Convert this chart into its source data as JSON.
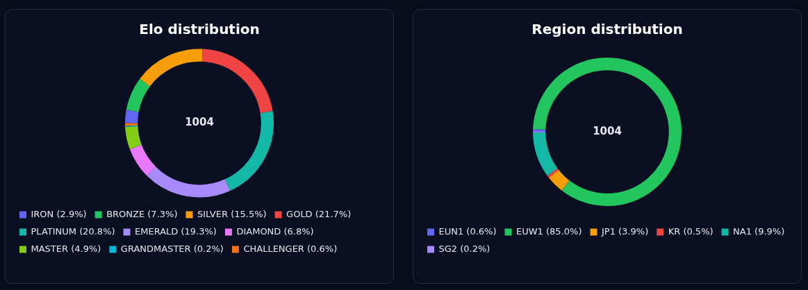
{
  "chart_data": [
    {
      "type": "donut",
      "title": "Elo distribution",
      "categories": [
        "IRON (2.9%)",
        "BRONZE (7.3%)",
        "SILVER (15.5%)",
        "GOLD (21.7%)",
        "PLATINUM (20.8%)",
        "EMERALD (19.3%)",
        "DIAMOND (6.8%)",
        "MASTER (4.9%)",
        "GRANDMASTER (0.2%)",
        "CHALLENGER (0.6%)"
      ],
      "values": [
        2.9,
        7.3,
        15.5,
        21.7,
        20.8,
        19.3,
        6.8,
        4.9,
        0.2,
        0.6
      ],
      "colors": [
        "#6366f1",
        "#22c55e",
        "#f59e0b",
        "#ef4444",
        "#14b8a6",
        "#a78bfa",
        "#e879f9",
        "#84cc16",
        "#06b6d4",
        "#f97316"
      ],
      "legend": "bottom",
      "annotations": [
        "1004"
      ]
    },
    {
      "type": "donut",
      "title": "Region distribution",
      "categories": [
        "EUN1 (0.6%)",
        "EUW1 (85.0%)",
        "JP1 (3.9%)",
        "KR (0.5%)",
        "NA1 (9.9%)",
        "SG2 (0.2%)"
      ],
      "values": [
        0.6,
        85.0,
        3.9,
        0.5,
        9.9,
        0.2
      ],
      "colors": [
        "#6366f1",
        "#22c55e",
        "#f59e0b",
        "#ef4444",
        "#14b8a6",
        "#a78bfa"
      ],
      "legend": "bottom",
      "annotations": [
        "1004"
      ]
    }
  ]
}
